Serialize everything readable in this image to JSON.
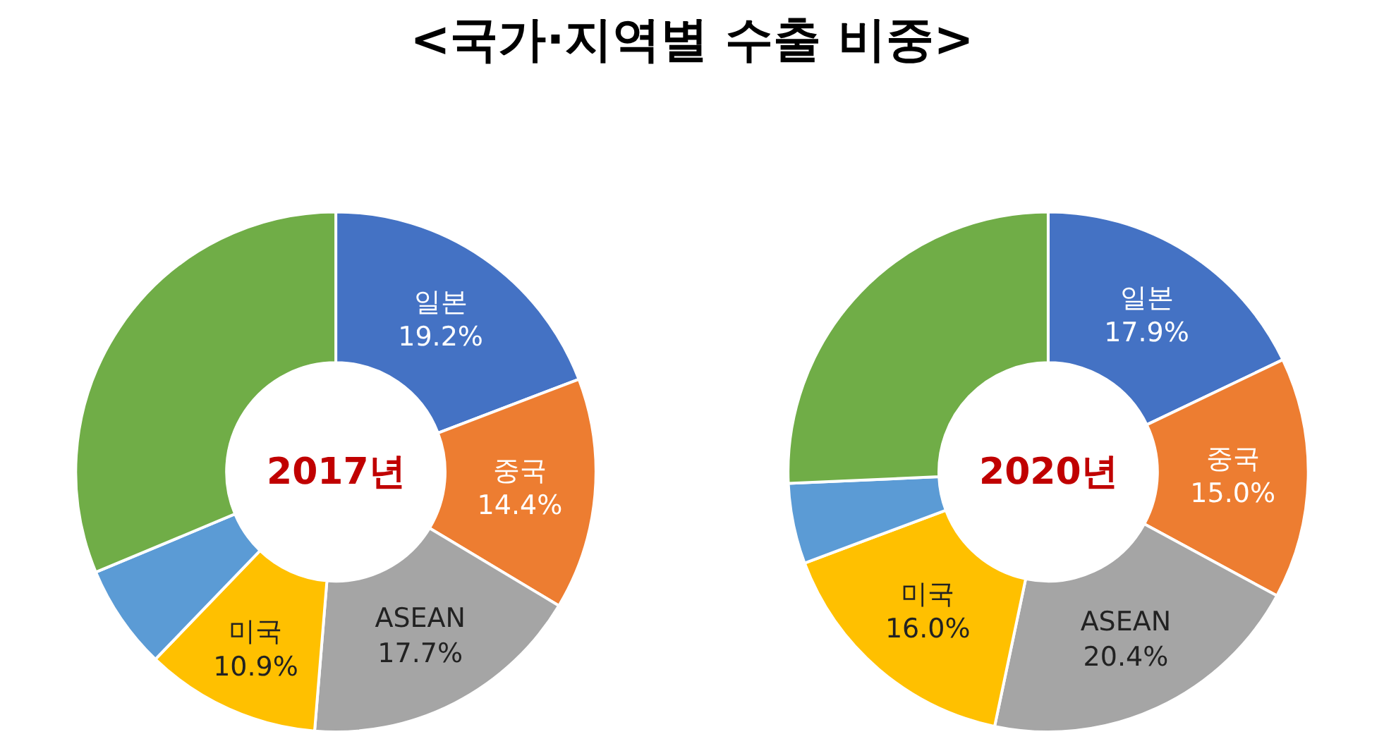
{
  "chart_data": [
    {
      "type": "donut",
      "title": "<국가·지역별 수출 비중>",
      "annotations": [
        "2017년"
      ],
      "categories": [
        "일본",
        "중국",
        "ASEAN",
        "미국",
        null,
        null
      ],
      "values": [
        19.2,
        14.4,
        17.7,
        10.9,
        6.5,
        31.3
      ],
      "value_labels": [
        "19.2%",
        "14.4%",
        "17.7%",
        "10.9%",
        null,
        null
      ],
      "colors": [
        "#4472c4",
        "#ed7d31",
        "#a5a5a5",
        "#ffc000",
        "#5b9bd5",
        "#70ad47"
      ]
    },
    {
      "type": "donut",
      "annotations": [
        "2020년"
      ],
      "categories": [
        "일본",
        "중국",
        "ASEAN",
        "미국",
        null,
        null
      ],
      "values": [
        17.9,
        15.0,
        20.4,
        16.0,
        5.0,
        25.7
      ],
      "value_labels": [
        "17.9%",
        "15.0%",
        "20.4%",
        "16.0%",
        null,
        null
      ],
      "colors": [
        "#4472c4",
        "#ed7d31",
        "#a5a5a5",
        "#ffc000",
        "#5b9bd5",
        "#70ad47"
      ]
    }
  ]
}
